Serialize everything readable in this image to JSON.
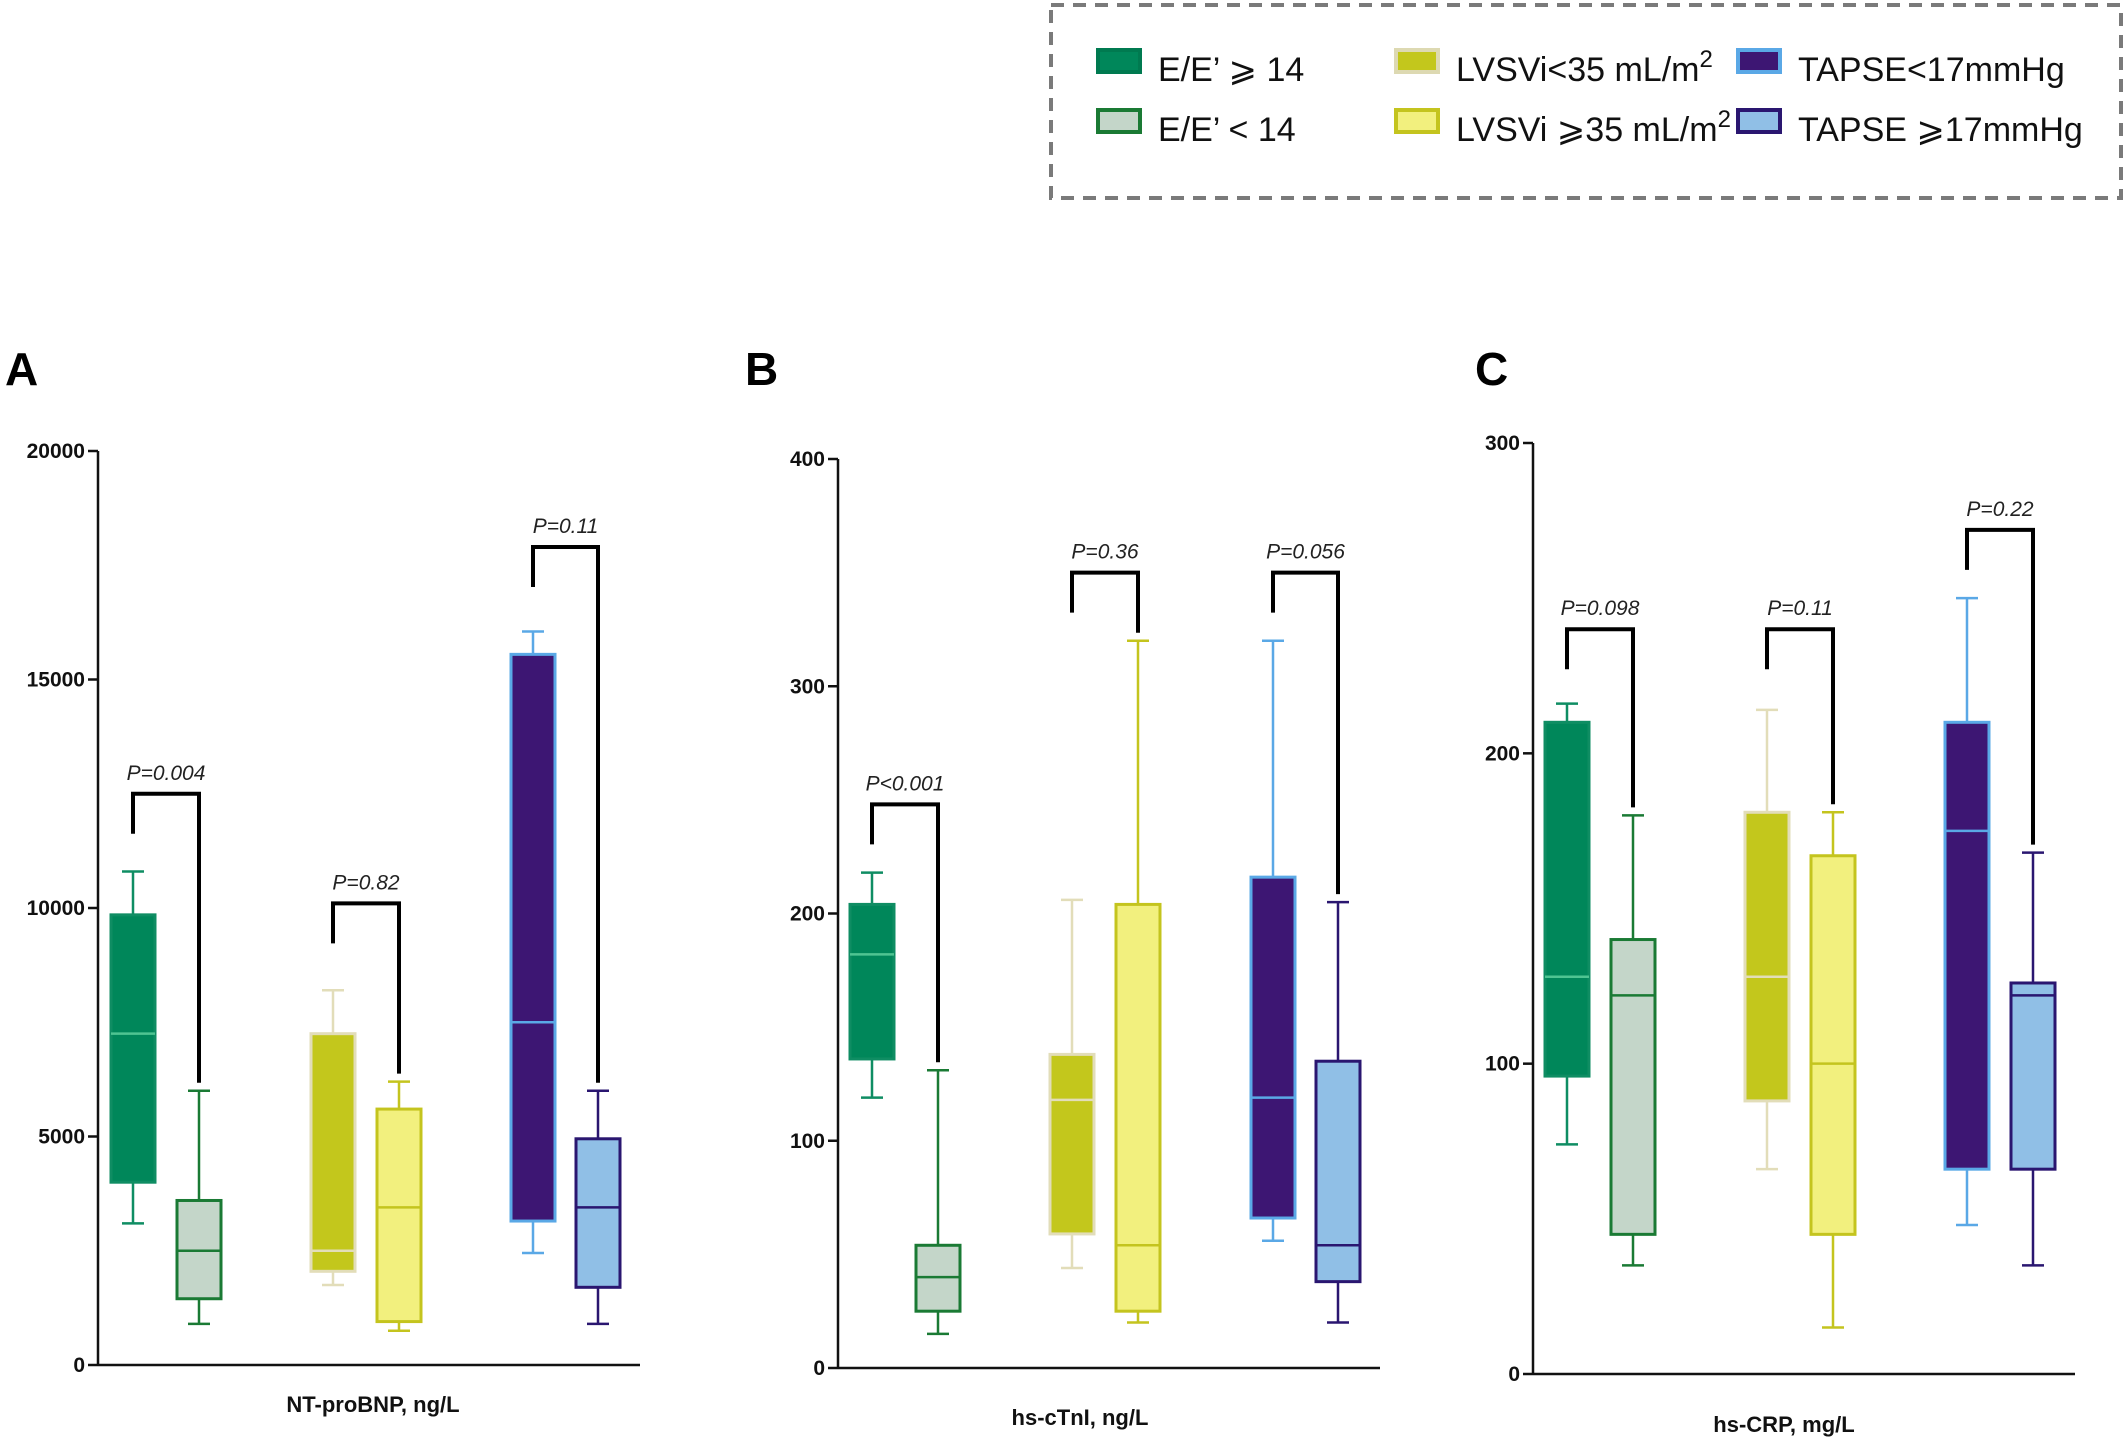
{
  "legend": {
    "items": [
      {
        "label": "E/E’ ⩾ 14",
        "sup": "",
        "fill": "#00875a",
        "stroke": "#007a50"
      },
      {
        "label": "E/E’ < 14",
        "sup": "",
        "fill": "#c4d6c9",
        "stroke": "#1a7a34"
      },
      {
        "label": "LVSVi<35 mL/m",
        "sup": "2",
        "fill": "#c3c71c",
        "stroke": "#ddd9b2"
      },
      {
        "label": "LVSVi ⩾35 mL/m",
        "sup": "2",
        "fill": "#f2f07e",
        "stroke": "#c4c41e"
      },
      {
        "label": "TAPSE<17mmHg",
        "sup": "",
        "fill": "#3d1673",
        "stroke": "#5aa8e6"
      },
      {
        "label": "TAPSE ⩾17mmHg",
        "sup": "",
        "fill": "#90bfe6",
        "stroke": "#2a1670"
      }
    ]
  },
  "chart_data": [
    {
      "panel": "A",
      "type": "boxplot",
      "xlabel": "NT-proBNP, ng/L",
      "ylim": [
        0,
        20000
      ],
      "yticks": [
        0,
        5000,
        10000,
        15000,
        20000
      ],
      "groups": [
        {
          "series": "E/E’ ⩾ 14",
          "min": 3100,
          "q1": 4000,
          "median": 7250,
          "q3": 9850,
          "max": 10800
        },
        {
          "series": "E/E’ < 14",
          "min": 900,
          "q1": 1450,
          "median": 2500,
          "q3": 3600,
          "max": 6000
        },
        {
          "series": "LVSVi<35 mL/m2",
          "min": 1750,
          "q1": 2050,
          "median": 2500,
          "q3": 7250,
          "max": 8200
        },
        {
          "series": "LVSVi ⩾35 mL/m2",
          "min": 750,
          "q1": 950,
          "median": 3450,
          "q3": 5600,
          "max": 6200
        },
        {
          "series": "TAPSE<17mmHg",
          "min": 2450,
          "q1": 3150,
          "median": 7500,
          "q3": 15550,
          "max": 16050
        },
        {
          "series": "TAPSE ⩾17mmHg",
          "min": 900,
          "q1": 1700,
          "median": 3450,
          "q3": 4950,
          "max": 6000
        }
      ],
      "comparisons": [
        {
          "between": [
            0,
            1
          ],
          "text": "P=0.004",
          "significant": true,
          "bar": 12500
        },
        {
          "between": [
            2,
            3
          ],
          "text": "P=0.82",
          "significant": false,
          "bar": 10100
        },
        {
          "between": [
            4,
            5
          ],
          "text": "P=0.11",
          "significant": false,
          "bar": 17900
        }
      ]
    },
    {
      "panel": "B",
      "type": "boxplot",
      "xlabel": "hs-cTnI, ng/L",
      "ylim": [
        0,
        400
      ],
      "yticks": [
        0,
        100,
        200,
        300,
        400
      ],
      "groups": [
        {
          "series": "E/E’ ⩾ 14",
          "min": 119,
          "q1": 136,
          "median": 182,
          "q3": 204,
          "max": 218
        },
        {
          "series": "E/E’ < 14",
          "min": 15,
          "q1": 25,
          "median": 40,
          "q3": 54,
          "max": 131
        },
        {
          "series": "LVSVi<35 mL/m2",
          "min": 44,
          "q1": 59,
          "median": 118,
          "q3": 138,
          "max": 206
        },
        {
          "series": "LVSVi ⩾35 mL/m2",
          "min": 20,
          "q1": 25,
          "median": 54,
          "q3": 204,
          "max": 320
        },
        {
          "series": "TAPSE<17mmHg",
          "min": 56,
          "q1": 66,
          "median": 119,
          "q3": 216,
          "max": 320
        },
        {
          "series": "TAPSE ⩾17mmHg",
          "min": 20,
          "q1": 38,
          "median": 54,
          "q3": 135,
          "max": 205
        }
      ],
      "comparisons": [
        {
          "between": [
            0,
            1
          ],
          "text": "P<0.001",
          "significant": true,
          "bar": 248
        },
        {
          "between": [
            2,
            3
          ],
          "text": "P=0.36",
          "significant": false,
          "bar": 350
        },
        {
          "between": [
            4,
            5
          ],
          "text": "P=0.056",
          "significant": false,
          "bar": 350
        }
      ]
    },
    {
      "panel": "C",
      "type": "boxplot",
      "xlabel": "hs-CRP, mg/L",
      "ylim": [
        0,
        300
      ],
      "yticks": [
        0,
        100,
        200,
        300
      ],
      "groups": [
        {
          "series": "E/E’ ⩾ 14",
          "min": 74,
          "q1": 96,
          "median": 128,
          "q3": 210,
          "max": 216
        },
        {
          "series": "E/E’ < 14",
          "min": 35,
          "q1": 45,
          "median": 122,
          "q3": 140,
          "max": 180
        },
        {
          "series": "LVSVi<35 mL/m2",
          "min": 66,
          "q1": 88,
          "median": 128,
          "q3": 181,
          "max": 214
        },
        {
          "series": "LVSVi ⩾35 mL/m2",
          "min": 15,
          "q1": 45,
          "median": 100,
          "q3": 167,
          "max": 181
        },
        {
          "series": "TAPSE<17mmHg",
          "min": 48,
          "q1": 66,
          "median": 175,
          "q3": 210,
          "max": 250
        },
        {
          "series": "TAPSE ⩾17mmHg",
          "min": 35,
          "q1": 66,
          "median": 122,
          "q3": 126,
          "max": 168
        }
      ],
      "comparisons": [
        {
          "between": [
            0,
            1
          ],
          "text": "P=0.098",
          "significant": false,
          "bar": 240
        },
        {
          "between": [
            2,
            3
          ],
          "text": "P=0.11",
          "significant": false,
          "bar": 240
        },
        {
          "between": [
            4,
            5
          ],
          "text": "P=0.22",
          "significant": false,
          "bar": 272
        }
      ]
    }
  ]
}
